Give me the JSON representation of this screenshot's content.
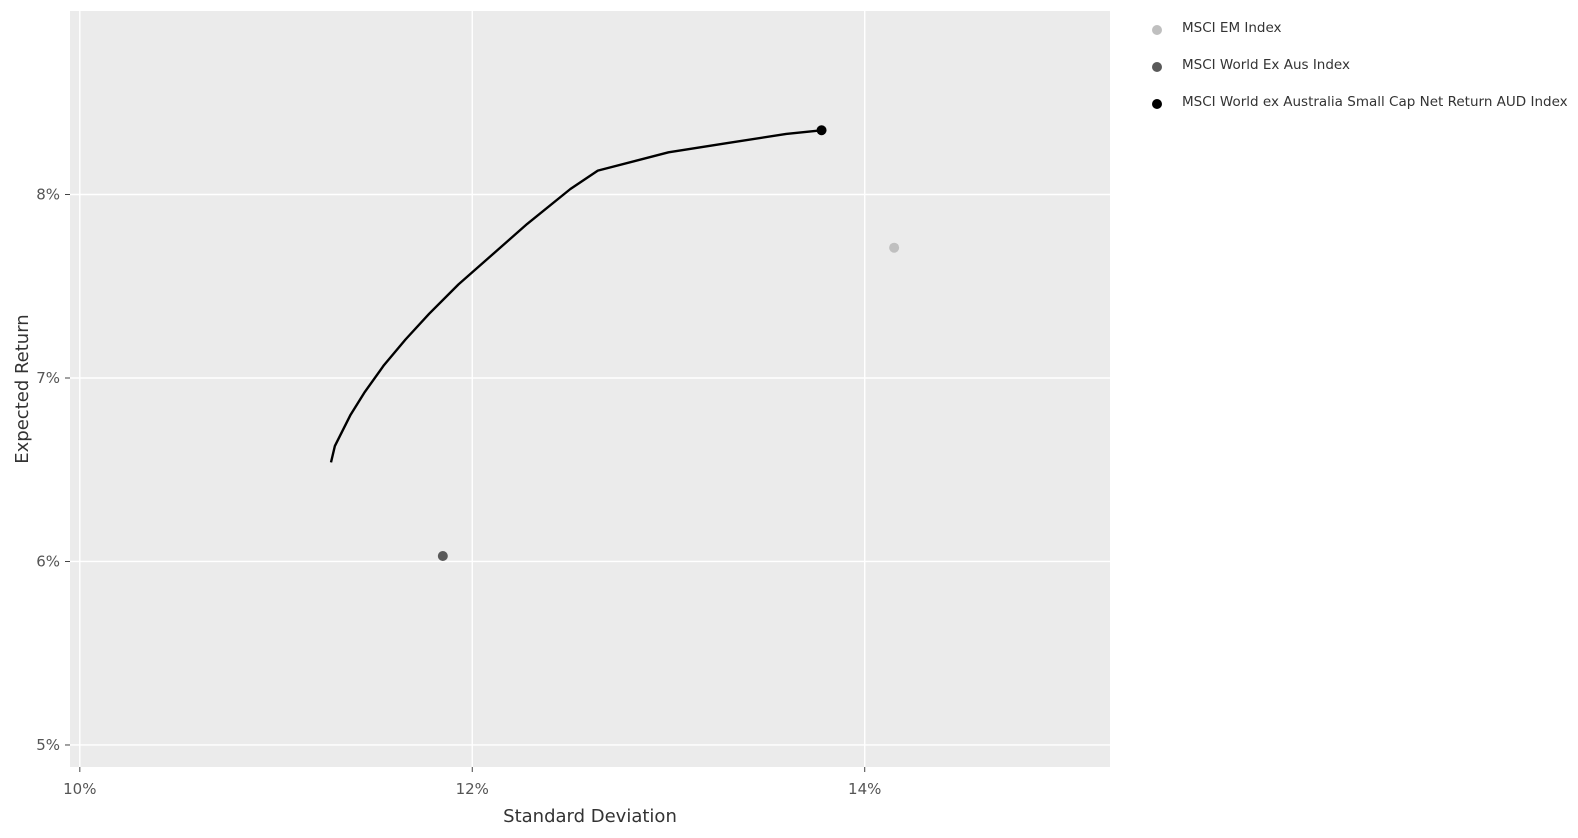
{
  "chart_data": {
    "type": "scatter",
    "xlabel": "Standard Deviation",
    "ylabel": "Expected Return",
    "xlim": [
      9.95,
      15.25
    ],
    "ylim": [
      4.88,
      9.0
    ],
    "x_ticks": [
      10,
      12,
      14
    ],
    "x_tick_labels": [
      "10%",
      "12%",
      "14%"
    ],
    "y_ticks": [
      5,
      6,
      7,
      8
    ],
    "y_tick_labels": [
      "5%",
      "6%",
      "7%",
      "8%"
    ],
    "grid": true,
    "legend_position": "right",
    "colors": {
      "panel": "#ebebeb",
      "grid": "#ffffff",
      "frontier": "#000000"
    },
    "frontier": {
      "x": [
        11.28,
        11.3,
        11.38,
        11.45,
        11.55,
        11.66,
        11.78,
        11.93,
        12.1,
        12.28,
        12.5,
        12.64,
        13.0,
        13.3,
        13.6,
        13.78
      ],
      "y": [
        6.54,
        6.63,
        6.8,
        6.92,
        7.07,
        7.21,
        7.35,
        7.51,
        7.67,
        7.84,
        8.03,
        8.13,
        8.23,
        8.28,
        8.33,
        8.35
      ]
    },
    "series": [
      {
        "name": "MSCI EM Index",
        "color": "#bfbfbf",
        "x": [
          14.15
        ],
        "y": [
          7.71
        ]
      },
      {
        "name": "MSCI World Ex Aus Index",
        "color": "#595959",
        "x": [
          11.85
        ],
        "y": [
          6.03
        ]
      },
      {
        "name": "MSCI World ex Australia Small Cap Net Return AUD Index",
        "color": "#000000",
        "x": [
          13.78
        ],
        "y": [
          8.35
        ]
      }
    ]
  }
}
